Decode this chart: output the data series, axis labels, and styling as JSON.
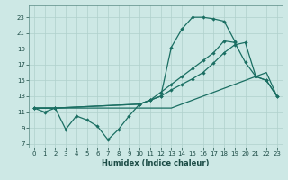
{
  "xlabel": "Humidex (Indice chaleur)",
  "background_color": "#cde8e5",
  "grid_color": "#b0d0cc",
  "line_color": "#1a6e62",
  "xlim": [
    -0.5,
    23.5
  ],
  "ylim": [
    6.5,
    24.5
  ],
  "xticks": [
    0,
    1,
    2,
    3,
    4,
    5,
    6,
    7,
    8,
    9,
    10,
    11,
    12,
    13,
    14,
    15,
    16,
    17,
    18,
    19,
    20,
    21,
    22,
    23
  ],
  "yticks": [
    7,
    9,
    11,
    13,
    15,
    17,
    19,
    21,
    23
  ],
  "line1_x": [
    0,
    1,
    2,
    3,
    4,
    5,
    6,
    7,
    8,
    9,
    10,
    11,
    12,
    13,
    14,
    15,
    16,
    17,
    18,
    19
  ],
  "line1_y": [
    11.5,
    11.0,
    11.5,
    8.8,
    10.5,
    10.0,
    9.2,
    7.5,
    8.8,
    10.5,
    12.0,
    12.5,
    13.0,
    19.2,
    21.5,
    23.0,
    23.0,
    22.8,
    22.5,
    20.0
  ],
  "line2_x": [
    0,
    2,
    10,
    11,
    12,
    13,
    14,
    15,
    16,
    17,
    18,
    19,
    20,
    21,
    22,
    23
  ],
  "line2_y": [
    11.5,
    11.5,
    12.0,
    12.5,
    13.5,
    14.5,
    15.5,
    16.5,
    17.5,
    18.5,
    20.0,
    19.8,
    17.3,
    15.5,
    15.0,
    13.0
  ],
  "line3_x": [
    0,
    2,
    10,
    11,
    12,
    13,
    14,
    15,
    16,
    17,
    18,
    19,
    20,
    21,
    22,
    23
  ],
  "line3_y": [
    11.5,
    11.5,
    12.0,
    12.5,
    13.0,
    13.8,
    14.5,
    15.2,
    16.0,
    17.2,
    18.5,
    19.5,
    19.8,
    15.5,
    15.0,
    13.0
  ],
  "line4_x": [
    0,
    2,
    10,
    11,
    12,
    13,
    14,
    15,
    16,
    17,
    18,
    19,
    20,
    21,
    22,
    23
  ],
  "line4_y": [
    11.5,
    11.5,
    11.5,
    11.5,
    11.5,
    11.5,
    12.0,
    12.5,
    13.0,
    13.5,
    14.0,
    14.5,
    15.0,
    15.5,
    16.0,
    13.0
  ]
}
